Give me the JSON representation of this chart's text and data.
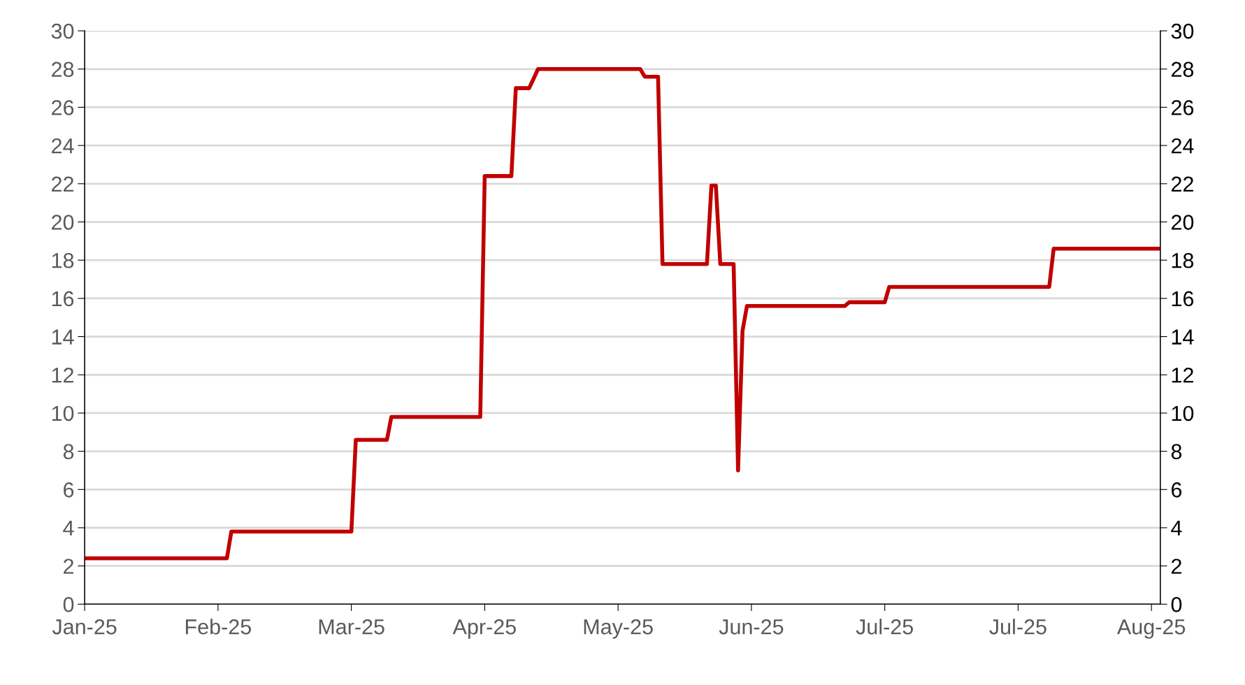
{
  "chart_data": {
    "type": "line",
    "x": [
      "2025-01-02",
      "2025-02-03",
      "2025-02-04",
      "2025-03-03",
      "2025-03-04",
      "2025-03-11",
      "2025-03-12",
      "2025-04-01",
      "2025-04-02",
      "2025-04-08",
      "2025-04-09",
      "2025-04-12",
      "2025-04-14",
      "2025-05-07",
      "2025-05-08",
      "2025-05-11",
      "2025-05-12",
      "2025-05-22",
      "2025-05-23",
      "2025-05-24",
      "2025-05-25",
      "2025-05-28",
      "2025-05-29",
      "2025-05-30",
      "2025-05-31",
      "2025-06-22",
      "2025-06-23",
      "2025-07-01",
      "2025-07-02",
      "2025-08-07",
      "2025-08-08",
      "2025-09-01"
    ],
    "series": [
      {
        "color": "#c00000",
        "values": [
          2.4,
          2.4,
          3.8,
          3.8,
          8.6,
          8.6,
          9.8,
          9.8,
          22.4,
          22.4,
          27,
          27,
          28,
          28,
          27.6,
          27.6,
          17.8,
          17.8,
          21.9,
          21.9,
          17.8,
          17.8,
          7,
          14.3,
          15.6,
          15.6,
          15.8,
          15.8,
          16.6,
          16.6,
          18.6,
          18.6
        ]
      }
    ],
    "xlim": [
      "2025-01-02",
      "2025-09-01"
    ],
    "xticks": [
      {
        "value": "2025-01-02",
        "label": "Jan-25"
      },
      {
        "value": "2025-02-01",
        "label": "Feb-25"
      },
      {
        "value": "2025-03-03",
        "label": "Mar-25"
      },
      {
        "value": "2025-04-02",
        "label": "Apr-25"
      },
      {
        "value": "2025-05-02",
        "label": "May-25"
      },
      {
        "value": "2025-06-01",
        "label": "Jun-25"
      },
      {
        "value": "2025-07-01",
        "label": "Jul-25"
      },
      {
        "value": "2025-07-31",
        "label": "Jul-25"
      },
      {
        "value": "2025-08-30",
        "label": "Aug-25"
      }
    ],
    "ylim": [
      0,
      30
    ],
    "yticks": [
      0,
      2,
      4,
      6,
      8,
      10,
      12,
      14,
      16,
      18,
      20,
      22,
      24,
      26,
      28,
      30
    ],
    "y2lim": [
      0,
      30
    ],
    "y2ticks": [
      0,
      2,
      4,
      6,
      8,
      10,
      12,
      14,
      16,
      18,
      20,
      22,
      24,
      26,
      28,
      30
    ],
    "grid": "y",
    "legend": false,
    "marker": "none",
    "line_style": "solid"
  }
}
